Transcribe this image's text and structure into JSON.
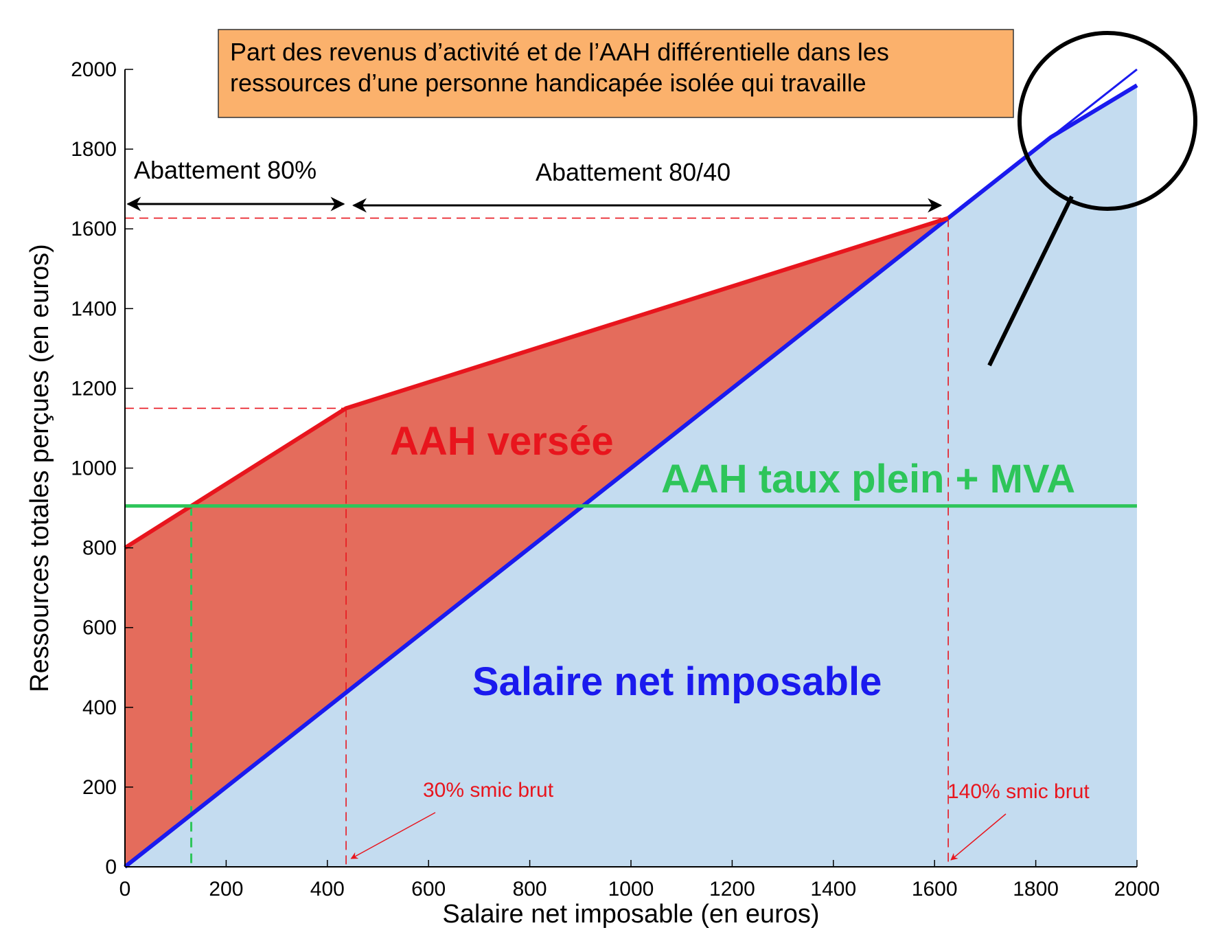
{
  "chart_data": {
    "type": "area",
    "title": [
      "Part des revenus d’activité et de l’AAH différentielle dans les",
      "ressources d’une personne handicapée isolée qui travaille"
    ],
    "xlabel": "Salaire net imposable (en euros)",
    "ylabel": "Ressources totales perçues (en euros)",
    "xlim": [
      0,
      2000
    ],
    "ylim": [
      0,
      2000
    ],
    "xticks": [
      0,
      200,
      400,
      600,
      800,
      1000,
      1200,
      1400,
      1600,
      1800,
      2000
    ],
    "yticks": [
      0,
      200,
      400,
      600,
      800,
      1000,
      1200,
      1400,
      1600,
      1800,
      2000
    ],
    "grid": false,
    "series": [
      {
        "name": "Salaire net imposable",
        "color": "#1a1aee",
        "x": [
          0,
          1830,
          2000
        ],
        "y": [
          0,
          1830,
          1960
        ]
      },
      {
        "name": "Salaire net imposable",
        "color": "#1a1aee",
        "x": [
          1830,
          2000
        ],
        "y": [
          1830,
          2000
        ]
      },
      {
        "name": "AAH versée",
        "color": "#e8151d",
        "x": [
          0,
          437,
          1627
        ],
        "y": [
          800,
          1150,
          1627
        ]
      },
      {
        "name": "AAH taux plein + MVA",
        "color": "#2ec55a",
        "x": [
          0,
          2000
        ],
        "y": [
          905,
          905
        ]
      }
    ],
    "reference_lines": [
      {
        "orientation": "horizontal",
        "y": 1627,
        "color": "#e8151d",
        "style": "dashed"
      },
      {
        "orientation": "horizontal",
        "y": 1150,
        "color": "#e8151d",
        "style": "dashed"
      },
      {
        "orientation": "vertical",
        "x": 437,
        "color": "#e8151d",
        "style": "dashed"
      },
      {
        "orientation": "vertical",
        "x": 1627,
        "color": "#e8151d",
        "style": "dashed"
      },
      {
        "orientation": "vertical",
        "x": 131,
        "color": "#2ec55a",
        "style": "dashed"
      }
    ],
    "annotations": {
      "abattement_80": "Abattement 80%",
      "abattement_80_40": "Abattement 80/40",
      "aah_versee": "AAH versée",
      "aah_taux_plein": "AAH taux plein + MVA",
      "salaire": "Salaire net imposable",
      "smic_30": "30% smic brut",
      "smic_140": "140% smic brut"
    },
    "colors": {
      "red_fill": "#e46c5c",
      "blue_fill": "#c4dcf0",
      "title_box": "#fbb16c",
      "red": "#e8151d",
      "blue": "#1a1aee",
      "green": "#2ec55a"
    }
  }
}
